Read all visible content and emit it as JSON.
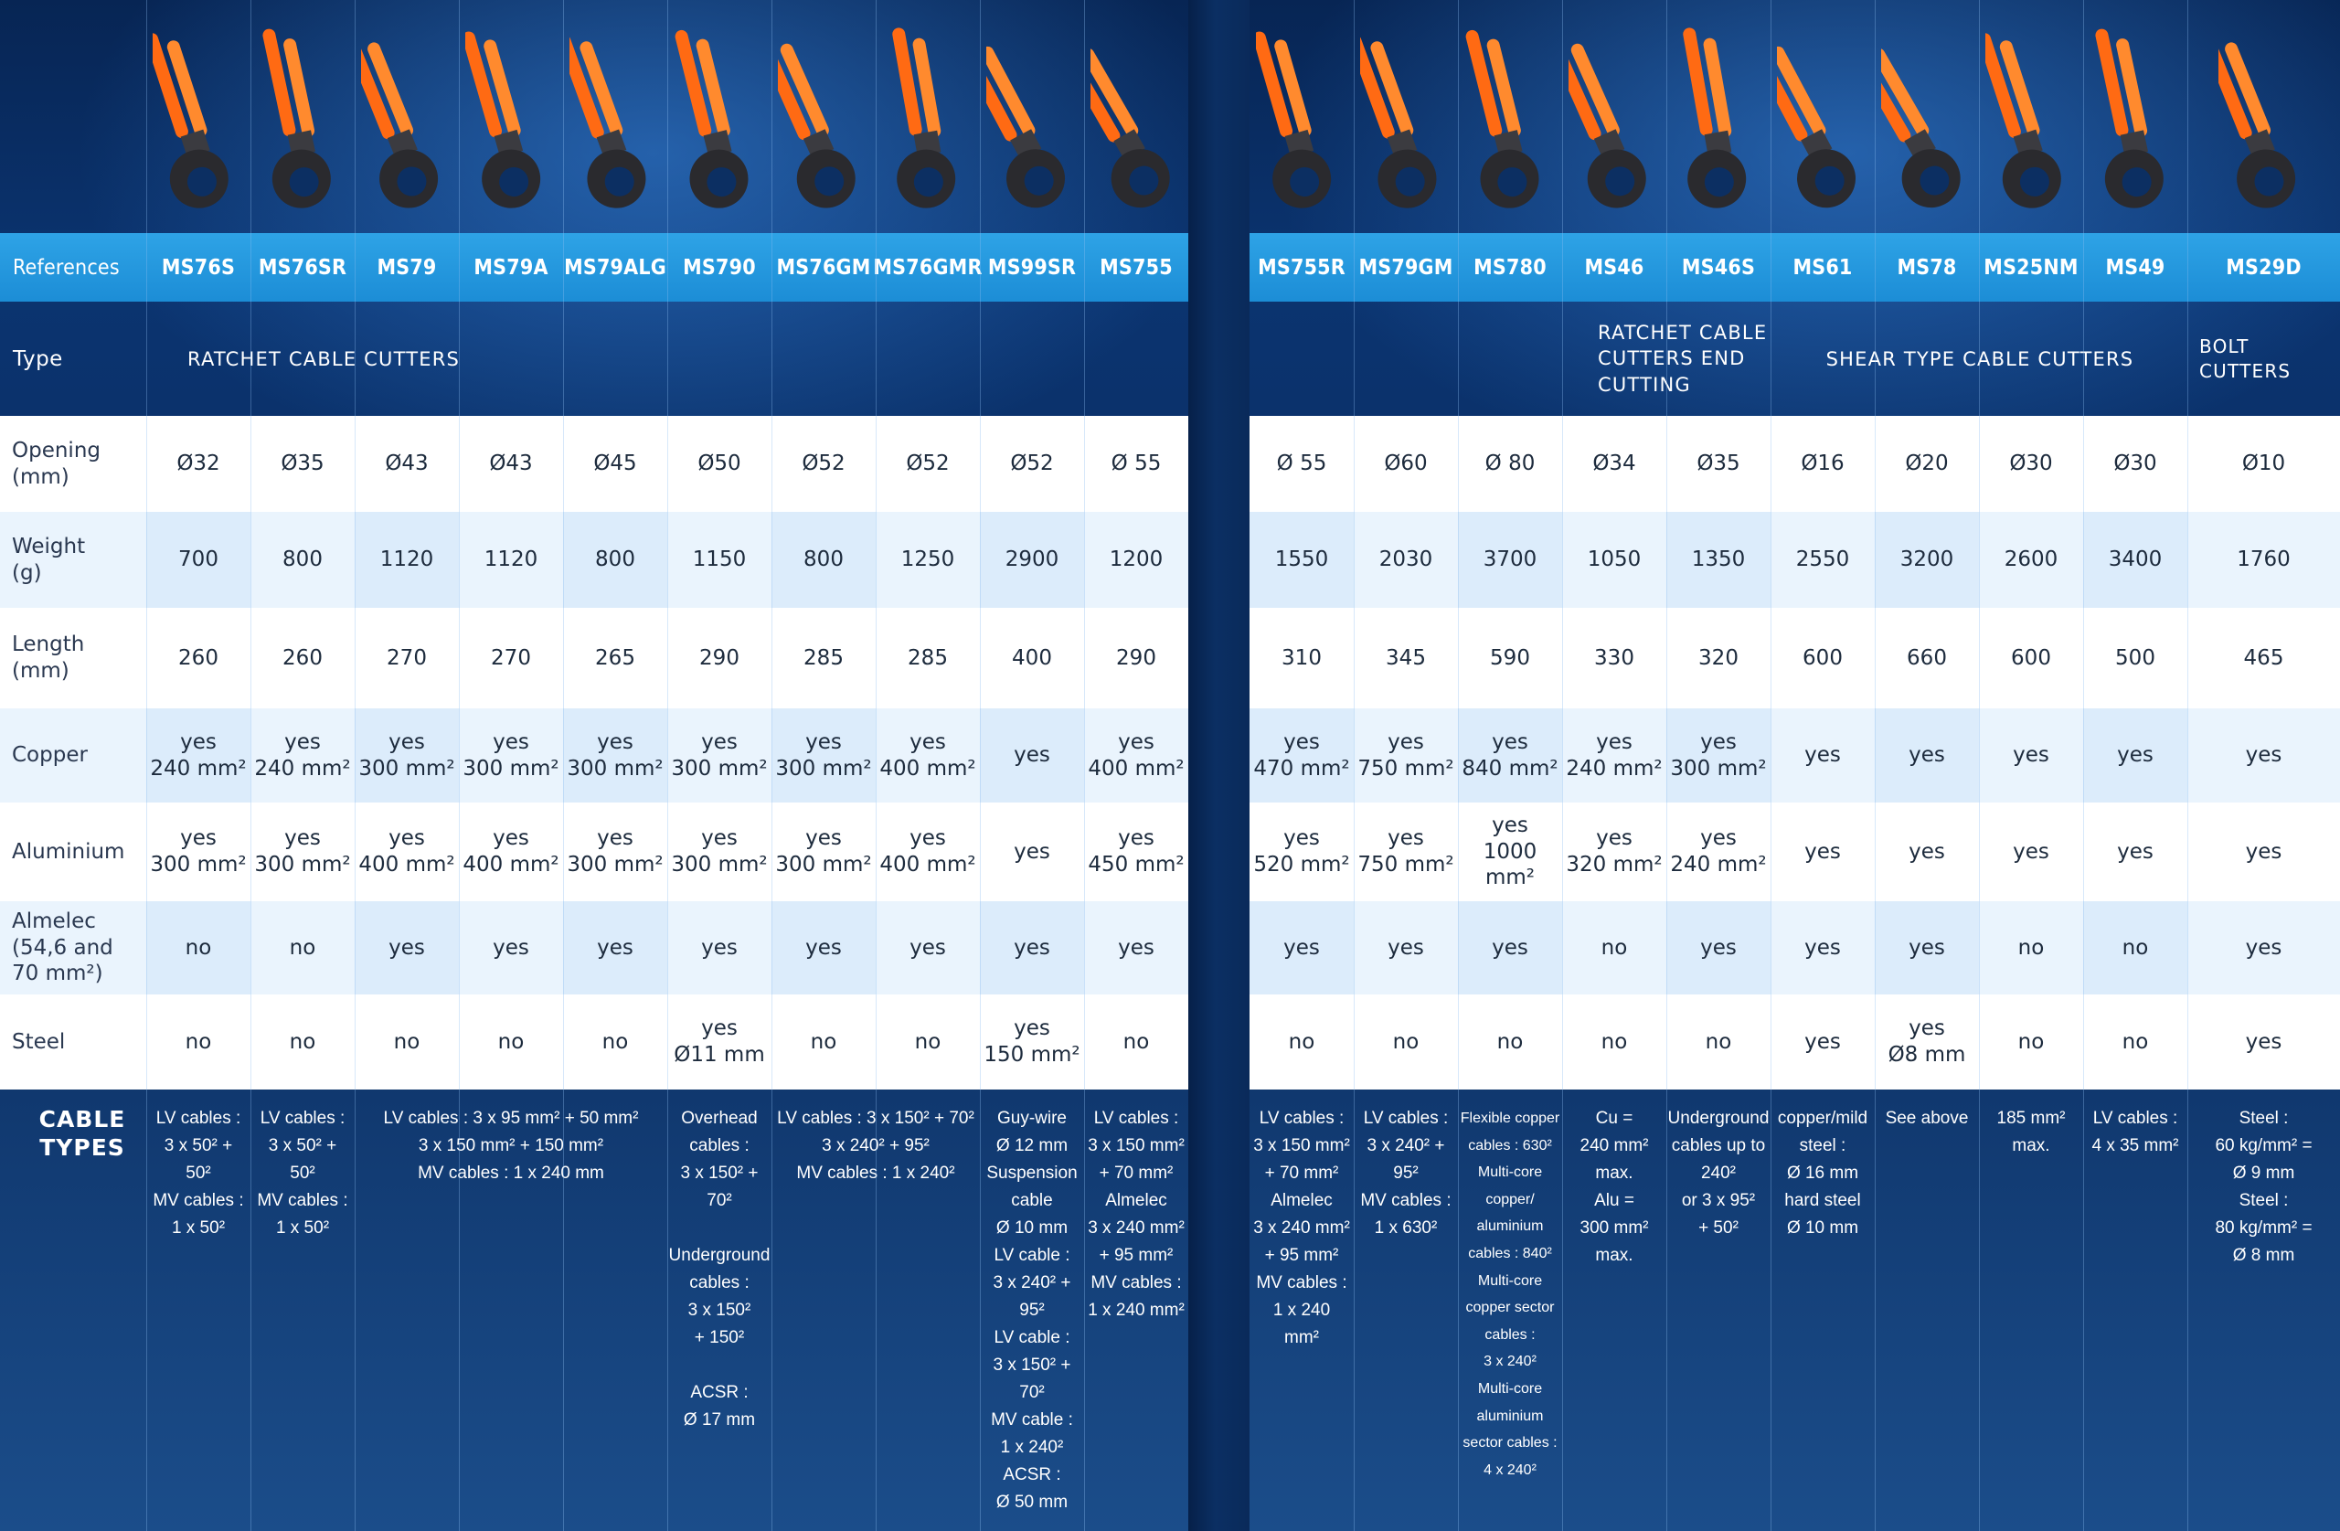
{
  "references_label": "References",
  "type_label": "Type",
  "cable_label": "CABLE TYPES",
  "row_labels": {
    "opening": "Opening (mm)",
    "weight": "Weight (g)",
    "length": "Length (mm)",
    "copper": "Copper",
    "aluminium": "Aluminium",
    "almelec": "Almelec (54,6 and 70 mm²)",
    "steel": "Steel"
  },
  "left": {
    "type_ratchet": "RATCHET CABLE CUTTERS",
    "refs": [
      "MS76S",
      "MS76SR",
      "MS79",
      "MS79A",
      "MS79ALG",
      "MS790",
      "MS76GM",
      "MS76GMR",
      "MS99SR",
      "MS755"
    ],
    "opening": [
      "Ø32",
      "Ø35",
      "Ø43",
      "Ø43",
      "Ø45",
      "Ø50",
      "Ø52",
      "Ø52",
      "Ø52",
      "Ø 55"
    ],
    "weight": [
      "700",
      "800",
      "1120",
      "1120",
      "800",
      "1150",
      "800",
      "1250",
      "2900",
      "1200"
    ],
    "length": [
      "260",
      "260",
      "270",
      "270",
      "265",
      "290",
      "285",
      "285",
      "400",
      "290"
    ],
    "copper": [
      "yes|240 mm²",
      "yes|240 mm²",
      "yes|300 mm²",
      "yes|300 mm²",
      "yes|300 mm²",
      "yes|300 mm²",
      "yes|300 mm²",
      "yes|400 mm²",
      "yes",
      "yes|400 mm²"
    ],
    "aluminium": [
      "yes|300 mm²",
      "yes|300 mm²",
      "yes|400 mm²",
      "yes|400 mm²",
      "yes|300 mm²",
      "yes|300 mm²",
      "yes|300 mm²",
      "yes|400 mm²",
      "yes",
      "yes|450 mm²"
    ],
    "almelec": [
      "no",
      "no",
      "yes",
      "yes",
      "yes",
      "yes",
      "yes",
      "yes",
      "yes",
      "yes"
    ],
    "steel": [
      "no",
      "no",
      "no",
      "no",
      "no",
      "yes|Ø11 mm",
      "no",
      "no",
      "yes|150 mm²",
      "no"
    ],
    "cable": {
      "c0": "LV cables :|3 x 50² +|50²|MV cables :|1 x 50²",
      "c1": "LV cables :|3 x 50² +|50²|MV cables :|1 x 50²",
      "c2_4": "LV cables : 3 x 95 mm² + 50 mm²|3 x 150 mm² + 150 mm²|MV cables : 1 x 240 mm",
      "c5": "Overhead|cables :|3 x 150² +|70²||Underground|cables :|3 x 150²|+ 150²||ACSR :|Ø 17 mm",
      "c6_7": "LV cables : 3 x 150² + 70²|3 x 240² + 95²|MV cables : 1 x 240²",
      "c8": "Guy-wire|Ø 12 mm|Suspension|cable|Ø 10 mm|LV cable :|3 x 240² +|95²|LV cable :|3 x 150² +|70²|MV cable :|1 x 240²|ACSR :|Ø 50 mm",
      "c9": "LV cables :|3 x 150 mm²|+ 70 mm²|Almelec|3 x 240 mm²|+ 95 mm²|MV cables :|1 x 240 mm²"
    }
  },
  "right": {
    "type_end": "RATCHET CABLE CUTTERS END CUTTING",
    "type_shear": "SHEAR TYPE CABLE CUTTERS",
    "type_bolt": "BOLT CUTTERS",
    "refs": [
      "MS755R",
      "MS79GM",
      "MS780",
      "MS46",
      "MS46S",
      "MS61",
      "MS78",
      "MS25NM",
      "MS49",
      "MS29D"
    ],
    "opening": [
      "Ø 55",
      "Ø60",
      "Ø 80",
      "Ø34",
      "Ø35",
      "Ø16",
      "Ø20",
      "Ø30",
      "Ø30",
      "Ø10"
    ],
    "weight": [
      "1550",
      "2030",
      "3700",
      "1050",
      "1350",
      "2550",
      "3200",
      "2600",
      "3400",
      "1760"
    ],
    "length": [
      "310",
      "345",
      "590",
      "330",
      "320",
      "600",
      "660",
      "600",
      "500",
      "465"
    ],
    "copper": [
      "yes|470 mm²",
      "yes|750 mm²",
      "yes|840 mm²",
      "yes|240 mm²",
      "yes|300 mm²",
      "yes",
      "yes",
      "yes",
      "yes",
      "yes"
    ],
    "aluminium": [
      "yes|520 mm²",
      "yes|750 mm²",
      "yes|1000 mm²",
      "yes|320 mm²",
      "yes|240 mm²",
      "yes",
      "yes",
      "yes",
      "yes",
      "yes"
    ],
    "almelec": [
      "yes",
      "yes",
      "yes",
      "no",
      "yes",
      "yes",
      "yes",
      "no",
      "no",
      "yes"
    ],
    "steel": [
      "no",
      "no",
      "no",
      "no",
      "no",
      "yes",
      "yes|Ø8 mm",
      "no",
      "no",
      "yes"
    ],
    "cable": [
      "LV cables :|3 x 150 mm²|+ 70 mm²|Almelec|3 x 240 mm²|+ 95 mm²|MV cables :|1 x 240|mm²",
      "LV cables :|3 x 240² +|95²|MV cables :|1 x 630²",
      "Flexible copper|cables : 630²|Multi-core|copper/|aluminium|cables : 840²|Multi-core|copper sector|cables :|3 x 240²|Multi-core|aluminium|sector cables :|4 x 240²",
      "Cu =|240 mm²|max.|Alu =|300 mm²|max.",
      "Underground|cables up to|240²|or 3 x 95²|+ 50²",
      "copper/mild|steel :|Ø 16 mm|hard steel|Ø 10 mm",
      "See above",
      "185 mm²|max.",
      "LV cables :|4 x 35 mm²",
      "Steel :|60 kg/mm² =|Ø 9 mm|Steel :|80 kg/mm² =|Ø 8 mm"
    ]
  },
  "colors": {
    "handle": "#ff6a13",
    "blade": "#2a2a2e",
    "refs_bar": "#2ea3e6",
    "background": "#0b3470"
  }
}
